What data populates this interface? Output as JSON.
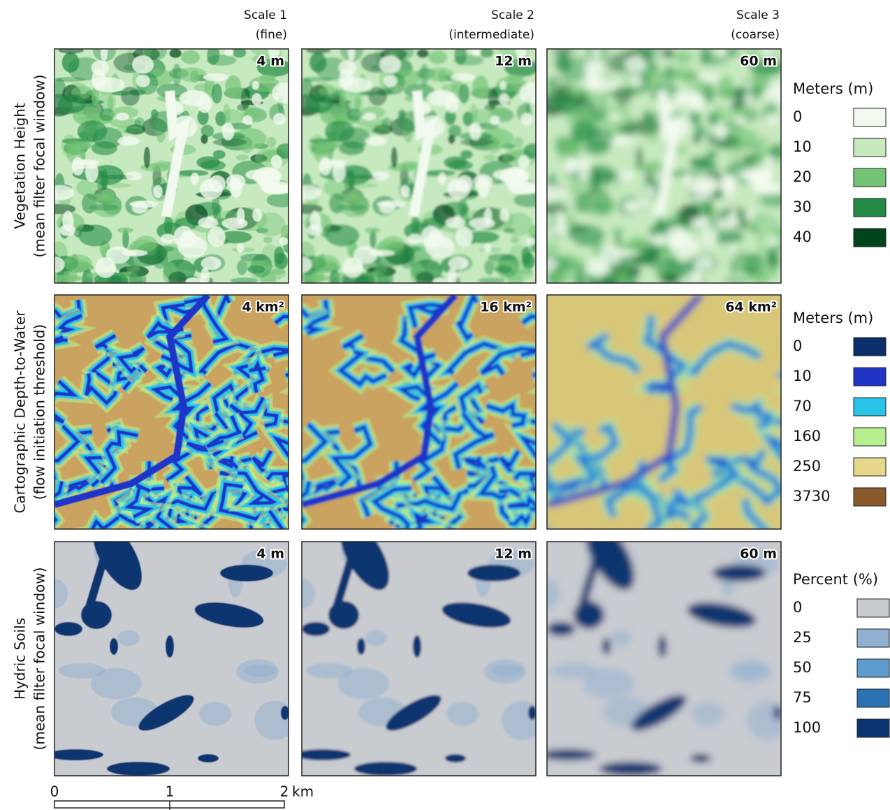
{
  "columns": [
    {
      "title": "Scale 1",
      "subtitle": "(fine)"
    },
    {
      "title": "Scale 2",
      "subtitle": "(intermediate)"
    },
    {
      "title": "Scale 3",
      "subtitle": "(coarse)"
    }
  ],
  "rows": [
    {
      "label": "Vegetation Height",
      "sublabel": "(mean filter focal window)",
      "panel_labels": [
        "4 m",
        "12 m",
        "60 m"
      ],
      "legend": {
        "title": "Meters (m)",
        "items": [
          {
            "label": "0",
            "color": "#f2faef"
          },
          {
            "label": "10",
            "color": "#c7e9c0"
          },
          {
            "label": "20",
            "color": "#74c476"
          },
          {
            "label": "30",
            "color": "#238b45"
          },
          {
            "label": "40",
            "color": "#00441b"
          }
        ]
      }
    },
    {
      "label": "Cartographic Depth-to-Water",
      "sublabel": "(flow initiation threshold)",
      "panel_labels": [
        "4 km²",
        "16 km²",
        "64 km²"
      ],
      "legend": {
        "title": "Meters (m)",
        "items": [
          {
            "label": "0",
            "color": "#0b2f6b"
          },
          {
            "label": "10",
            "color": "#1f35c8"
          },
          {
            "label": "70",
            "color": "#29c3e8"
          },
          {
            "label": "160",
            "color": "#b7ef8e"
          },
          {
            "label": "250",
            "color": "#e5d88a"
          },
          {
            "label": "3730",
            "color": "#8a5a2b"
          }
        ]
      }
    },
    {
      "label": "Hydric Soils",
      "sublabel": "(mean filter focal window)",
      "panel_labels": [
        "4 m",
        "12 m",
        "60 m"
      ],
      "legend": {
        "title": "Percent (%)",
        "items": [
          {
            "label": "0",
            "color": "#c8cbd0"
          },
          {
            "label": "25",
            "color": "#8fb0cf"
          },
          {
            "label": "50",
            "color": "#5d9ccd"
          },
          {
            "label": "75",
            "color": "#2a72b3"
          },
          {
            "label": "100",
            "color": "#0b3470"
          }
        ]
      }
    }
  ],
  "scale_bar": {
    "ticks": [
      "0",
      "1",
      "2"
    ],
    "unit": "km"
  }
}
